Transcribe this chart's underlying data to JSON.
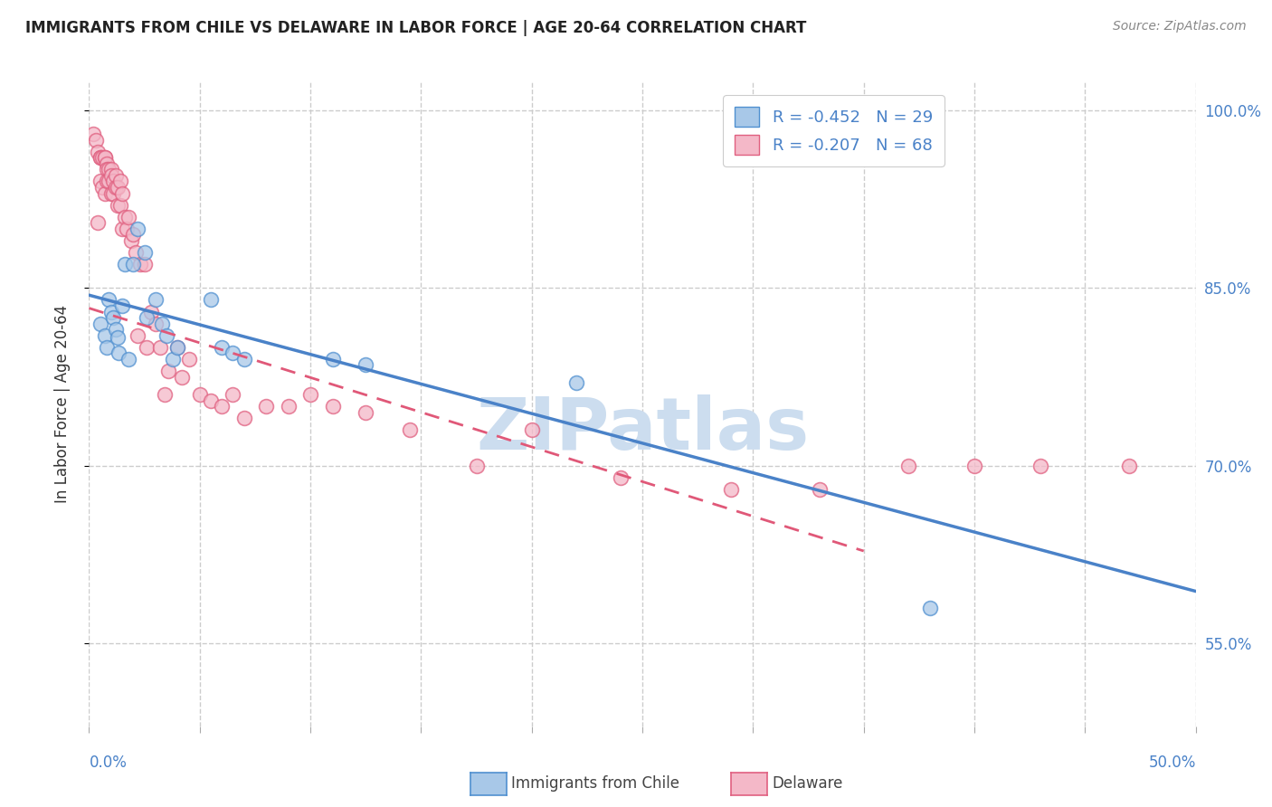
{
  "title": "IMMIGRANTS FROM CHILE VS DELAWARE IN LABOR FORCE | AGE 20-64 CORRELATION CHART",
  "source": "Source: ZipAtlas.com",
  "ylabel": "In Labor Force | Age 20-64",
  "legend_r1": "-0.452",
  "legend_n1": "29",
  "legend_r2": "-0.207",
  "legend_n2": "68",
  "chile_color": "#a8c8e8",
  "delaware_color": "#f4b8c8",
  "chile_edge_color": "#5090d0",
  "delaware_edge_color": "#e06080",
  "chile_line_color": "#4a82c8",
  "delaware_line_color": "#e05878",
  "tick_color": "#5090d0",
  "watermark": "ZIPatlas",
  "watermark_color": "#ccddef",
  "grid_color": "#cccccc",
  "background_color": "#ffffff",
  "xmin": 0.0,
  "xmax": 50.0,
  "ymin": 0.48,
  "ymax": 1.025,
  "chile_scatter_x": [
    0.5,
    0.7,
    0.8,
    0.9,
    1.0,
    1.1,
    1.2,
    1.3,
    1.35,
    1.5,
    1.6,
    1.8,
    2.0,
    2.2,
    2.5,
    2.6,
    3.0,
    3.3,
    3.5,
    3.8,
    4.0,
    5.5,
    6.0,
    6.5,
    7.0,
    11.0,
    12.5,
    22.0,
    38.0
  ],
  "chile_scatter_y": [
    0.82,
    0.81,
    0.8,
    0.84,
    0.83,
    0.825,
    0.815,
    0.808,
    0.795,
    0.835,
    0.87,
    0.79,
    0.87,
    0.9,
    0.88,
    0.825,
    0.84,
    0.82,
    0.81,
    0.79,
    0.8,
    0.84,
    0.8,
    0.795,
    0.79,
    0.79,
    0.785,
    0.77,
    0.58
  ],
  "delaware_scatter_x": [
    0.2,
    0.3,
    0.4,
    0.4,
    0.5,
    0.5,
    0.5,
    0.6,
    0.6,
    0.7,
    0.7,
    0.7,
    0.8,
    0.8,
    0.8,
    0.9,
    0.9,
    1.0,
    1.0,
    1.0,
    1.1,
    1.1,
    1.2,
    1.2,
    1.3,
    1.3,
    1.4,
    1.4,
    1.5,
    1.5,
    1.6,
    1.7,
    1.8,
    1.9,
    2.0,
    2.1,
    2.2,
    2.3,
    2.5,
    2.6,
    2.8,
    3.0,
    3.2,
    3.4,
    3.6,
    4.0,
    4.2,
    4.5,
    5.0,
    5.5,
    6.0,
    6.5,
    7.0,
    8.0,
    9.0,
    10.0,
    11.0,
    12.5,
    14.5,
    17.5,
    20.0,
    24.0,
    29.0,
    33.0,
    37.0,
    40.0,
    43.0,
    47.0
  ],
  "delaware_scatter_y": [
    0.98,
    0.975,
    0.965,
    0.905,
    0.96,
    0.96,
    0.94,
    0.96,
    0.935,
    0.96,
    0.96,
    0.93,
    0.955,
    0.95,
    0.94,
    0.95,
    0.94,
    0.95,
    0.945,
    0.93,
    0.94,
    0.93,
    0.945,
    0.935,
    0.935,
    0.92,
    0.94,
    0.92,
    0.93,
    0.9,
    0.91,
    0.9,
    0.91,
    0.89,
    0.895,
    0.88,
    0.81,
    0.87,
    0.87,
    0.8,
    0.83,
    0.82,
    0.8,
    0.76,
    0.78,
    0.8,
    0.775,
    0.79,
    0.76,
    0.755,
    0.75,
    0.76,
    0.74,
    0.75,
    0.75,
    0.76,
    0.75,
    0.745,
    0.73,
    0.7,
    0.73,
    0.69,
    0.68,
    0.68,
    0.7,
    0.7,
    0.7,
    0.7
  ],
  "chile_trendline_x": [
    0.0,
    50.0
  ],
  "chile_trendline_y": [
    0.844,
    0.594
  ],
  "delaware_trendline_x": [
    0.0,
    35.0
  ],
  "delaware_trendline_y": [
    0.833,
    0.628
  ]
}
